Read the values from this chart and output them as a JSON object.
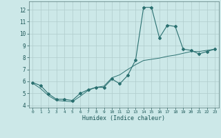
{
  "title": "",
  "xlabel": "Humidex (Indice chaleur)",
  "bg_color": "#cce8e8",
  "grid_color": "#b0cccc",
  "line_color": "#2a7070",
  "xlim": [
    -0.5,
    23.5
  ],
  "ylim": [
    3.8,
    12.7
  ],
  "yticks": [
    4,
    5,
    6,
    7,
    8,
    9,
    10,
    11,
    12
  ],
  "xticks": [
    0,
    1,
    2,
    3,
    4,
    5,
    6,
    7,
    8,
    9,
    10,
    11,
    12,
    13,
    14,
    15,
    16,
    17,
    18,
    19,
    20,
    21,
    22,
    23
  ],
  "series1_x": [
    0,
    1,
    2,
    3,
    4,
    5,
    6,
    7,
    8,
    9,
    10,
    11,
    12,
    13,
    14,
    15,
    16,
    17,
    18,
    19,
    20,
    21,
    22,
    23
  ],
  "series1_y": [
    5.9,
    5.65,
    4.95,
    4.5,
    4.5,
    4.4,
    5.0,
    5.3,
    5.5,
    5.5,
    6.2,
    5.8,
    6.5,
    7.8,
    12.2,
    12.2,
    9.65,
    10.7,
    10.6,
    8.7,
    8.6,
    8.3,
    8.5,
    8.7
  ],
  "series2_x": [
    0,
    1,
    2,
    3,
    4,
    5,
    6,
    7,
    8,
    9,
    10,
    11,
    12,
    13,
    14,
    15,
    16,
    17,
    18,
    19,
    20,
    21,
    22,
    23
  ],
  "series2_y": [
    5.85,
    5.4,
    4.8,
    4.4,
    4.35,
    4.3,
    4.75,
    5.25,
    5.5,
    5.6,
    6.3,
    6.55,
    7.0,
    7.4,
    7.75,
    7.85,
    7.95,
    8.1,
    8.2,
    8.35,
    8.5,
    8.5,
    8.6,
    8.7
  ]
}
